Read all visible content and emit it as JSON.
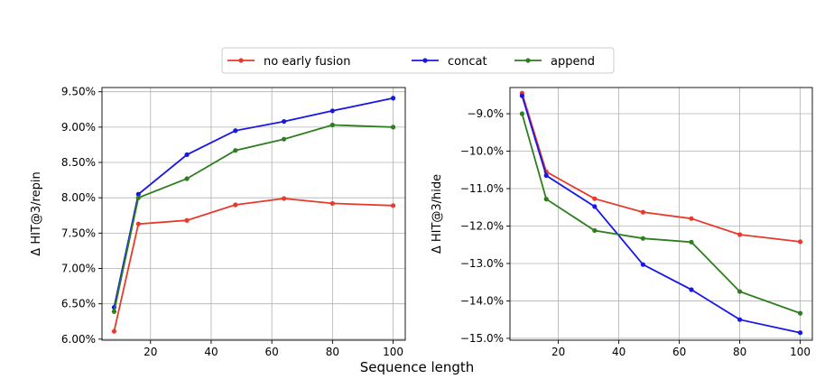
{
  "chart_data": {
    "type": "line",
    "xlabel": "Sequence length",
    "legend": {
      "placement": "top-center",
      "entries": [
        {
          "name": "no early fusion",
          "color": "#e8392b"
        },
        {
          "name": "concat",
          "color": "#1717e6"
        },
        {
          "name": "append",
          "color": "#2e7d1e"
        }
      ]
    },
    "subplots": [
      {
        "id": "repin",
        "ylabel": "Δ HIT@3/repin",
        "x": [
          8,
          16,
          32,
          48,
          64,
          80,
          100
        ],
        "xlim": [
          4,
          104
        ],
        "ylim": [
          5.985,
          9.56
        ],
        "xticks": [
          20,
          40,
          60,
          80,
          100
        ],
        "xtick_labels": [
          "20",
          "40",
          "60",
          "80",
          "100"
        ],
        "yticks": [
          6.0,
          6.5,
          7.0,
          7.5,
          8.0,
          8.5,
          9.0,
          9.5
        ],
        "ytick_labels": [
          "6.00%",
          "6.50%",
          "7.00%",
          "7.50%",
          "8.00%",
          "8.50%",
          "9.00%",
          "9.50%"
        ],
        "series": [
          {
            "name": "no early fusion",
            "color": "#e8392b",
            "values": [
              6.11,
              7.63,
              7.68,
              7.9,
              7.99,
              7.92,
              7.89
            ]
          },
          {
            "name": "concat",
            "color": "#1717e6",
            "values": [
              6.45,
              8.05,
              8.61,
              8.95,
              9.08,
              9.23,
              9.41
            ]
          },
          {
            "name": "append",
            "color": "#2e7d1e",
            "values": [
              6.39,
              8.0,
              8.27,
              8.67,
              8.83,
              9.03,
              9.0
            ]
          }
        ]
      },
      {
        "id": "hide",
        "ylabel": "Δ HIT@3/hide",
        "x": [
          8,
          16,
          32,
          48,
          64,
          80,
          100
        ],
        "xlim": [
          4,
          104
        ],
        "ylim": [
          -15.05,
          -8.3
        ],
        "xticks": [
          20,
          40,
          60,
          80,
          100
        ],
        "xtick_labels": [
          "20",
          "40",
          "60",
          "80",
          "100"
        ],
        "yticks": [
          -9,
          -10,
          -11,
          -12,
          -13,
          -14,
          -15
        ],
        "ytick_labels": [
          "−9.0%",
          "−10.0%",
          "−11.0%",
          "−12.0%",
          "−13.0%",
          "−14.0%",
          "−15.0%"
        ],
        "series": [
          {
            "name": "no early fusion",
            "color": "#e8392b",
            "values": [
              -8.45,
              -10.55,
              -11.27,
              -11.63,
              -11.8,
              -12.23,
              -12.42
            ]
          },
          {
            "name": "concat",
            "color": "#1717e6",
            "values": [
              -8.52,
              -10.65,
              -11.48,
              -13.03,
              -13.7,
              -14.5,
              -14.85
            ]
          },
          {
            "name": "append",
            "color": "#2e7d1e",
            "values": [
              -9.0,
              -11.28,
              -12.12,
              -12.33,
              -12.43,
              -13.75,
              -14.33
            ]
          }
        ]
      }
    ]
  }
}
